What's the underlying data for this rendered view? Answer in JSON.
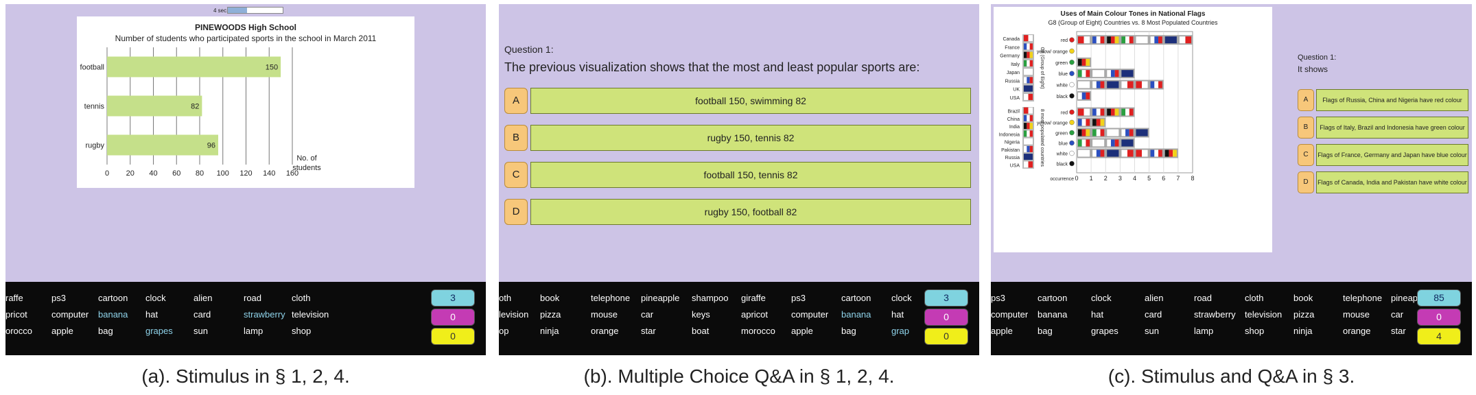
{
  "panel_a": {
    "timer_label": "4 sec.",
    "chart_data": {
      "type": "bar",
      "title": "PINEWOODS High School",
      "subtitle": "Number of students who participated sports in the school in March 2011",
      "categories": [
        "football",
        "tennis",
        "rugby"
      ],
      "values": [
        150,
        82,
        96
      ],
      "xlabel_line1": "No. of",
      "xlabel_line2": "students",
      "xlim": [
        0,
        160
      ],
      "xticks": [
        "0",
        "20",
        "40",
        "60",
        "80",
        "100",
        "120",
        "140",
        "160"
      ],
      "bar_color": "#c5e08a"
    },
    "caption": "(a). Stimulus in § 1, 2, 4.",
    "words": [
      [
        "raffe",
        "ps3",
        "cartoon",
        "clock",
        "alien",
        "road",
        "cloth"
      ],
      [
        "pricot",
        "computer",
        "banana",
        "hat",
        "card",
        "strawberry",
        "television"
      ],
      [
        "orocco",
        "apple",
        "bag",
        "grapes",
        "sun",
        "lamp",
        "shop"
      ]
    ],
    "counters": [
      "3",
      "0",
      "0"
    ]
  },
  "panel_b": {
    "question_label": "Question 1:",
    "question_text": "The previous visualization shows that the most and least popular sports are:",
    "options": [
      {
        "letter": "A",
        "text": "football 150, swimming 82"
      },
      {
        "letter": "B",
        "text": "rugby 150, tennis 82"
      },
      {
        "letter": "C",
        "text": "football 150, tennis 82"
      },
      {
        "letter": "D",
        "text": "rugby 150, football 82"
      }
    ],
    "caption": "(b). Multiple Choice Q&A in § 1, 2, 4.",
    "words": [
      [
        "oth",
        "book",
        "telephone",
        "pineapple",
        "shampoo",
        "giraffe",
        "ps3",
        "cartoon",
        "clock"
      ],
      [
        "levision",
        "pizza",
        "mouse",
        "car",
        "keys",
        "apricot",
        "computer",
        "banana",
        "hat"
      ],
      [
        "op",
        "ninja",
        "orange",
        "star",
        "boat",
        "morocco",
        "apple",
        "bag",
        "grap"
      ]
    ],
    "counters": [
      "3",
      "0",
      "0"
    ]
  },
  "panel_c": {
    "chart_data": {
      "type": "table",
      "title": "Uses of Main Colour Tones in National Flags",
      "subtitle": "G8 (Group of Eight) Countries vs. 8 Most Populated Countries",
      "group1_label": "G8 (Group of Eight)",
      "group2_label": "8 most populated countries",
      "group1_countries": [
        "Canada",
        "France",
        "Germany",
        "Italy",
        "Japan",
        "Russia",
        "UK",
        "USA"
      ],
      "group2_countries": [
        "Brazil",
        "China",
        "India",
        "Indonesia",
        "Nigeria",
        "Pakistan",
        "Russia",
        "USA"
      ],
      "colours": [
        "red",
        "yellow/ orange",
        "green",
        "blue",
        "white",
        "black"
      ],
      "colour_dots": [
        "#e02020",
        "#f2d21a",
        "#2aa040",
        "#2b4fc0",
        "#ffffff",
        "#111111"
      ],
      "group1_counts": [
        8,
        0,
        1,
        4,
        6,
        1
      ],
      "group2_counts": [
        4,
        2,
        5,
        4,
        7,
        0
      ],
      "xlabel": "occurrence",
      "xticks": [
        "0",
        "1",
        "2",
        "3",
        "4",
        "5",
        "6",
        "7",
        "8"
      ]
    },
    "question_label": "Question 1:",
    "question_text": "It shows",
    "options": [
      {
        "letter": "A",
        "text": "Flags of Russia, China and Nigeria have red colour"
      },
      {
        "letter": "B",
        "text": "Flags of Italy, Brazil and Indonesia have green colour"
      },
      {
        "letter": "C",
        "text": "Flags of France, Germany and Japan have blue colour"
      },
      {
        "letter": "D",
        "text": "Flags of Canada, India and Pakistan have white colour"
      }
    ],
    "caption": "(c). Stimulus and Q&A in § 3.",
    "words": [
      [
        "ps3",
        "cartoon",
        "clock",
        "alien",
        "road",
        "cloth",
        "book",
        "telephone",
        "pineap"
      ],
      [
        "computer",
        "banana",
        "hat",
        "card",
        "strawberry",
        "television",
        "pizza",
        "mouse",
        "car"
      ],
      [
        "apple",
        "bag",
        "grapes",
        "sun",
        "lamp",
        "shop",
        "ninja",
        "orange",
        "star"
      ]
    ],
    "counters": [
      "85",
      "0",
      "4"
    ]
  }
}
